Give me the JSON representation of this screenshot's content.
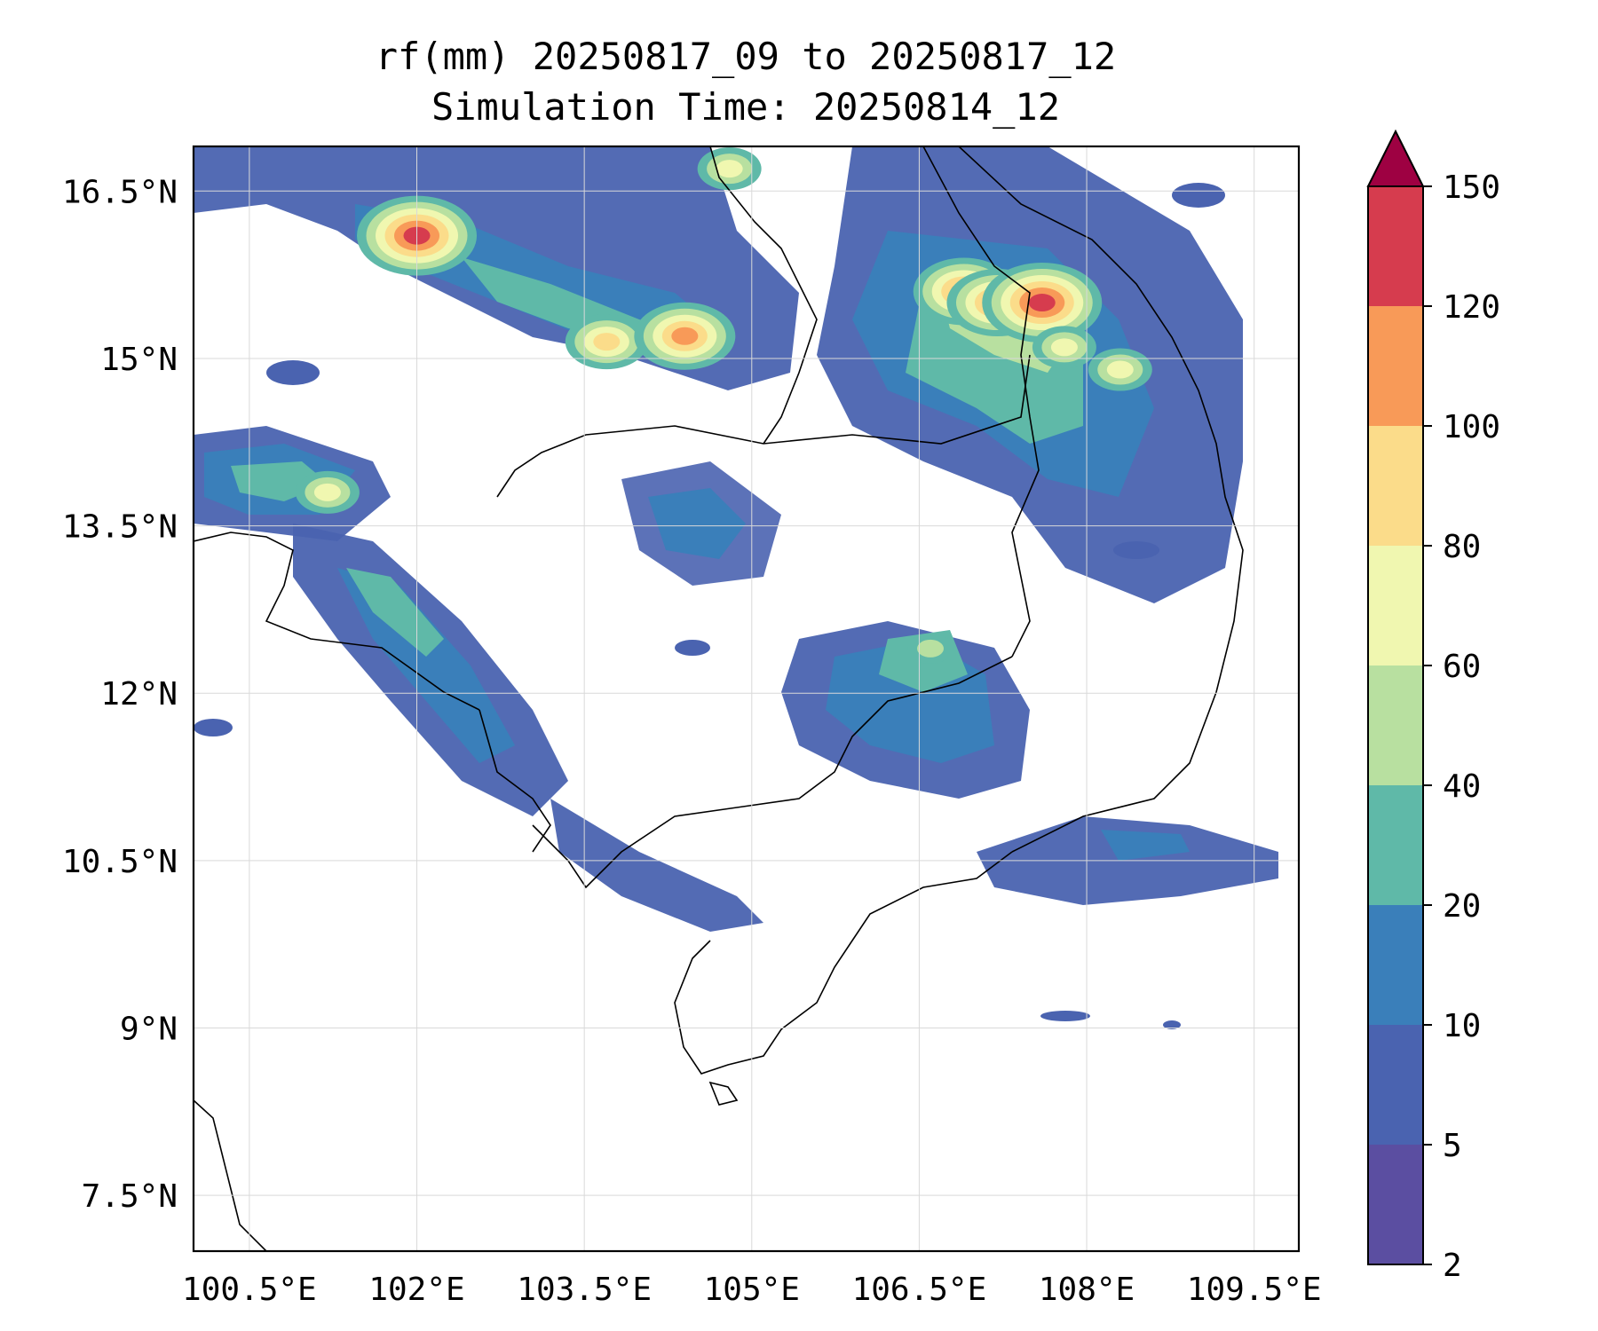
{
  "title": {
    "line1": "rf(mm) 20250817_09 to 20250817_12",
    "line2": "Simulation Time: 20250814_12"
  },
  "map": {
    "lon_range": [
      100.0,
      109.9
    ],
    "lat_range": [
      7.0,
      16.9
    ],
    "lon_ticks": [
      {
        "value": 100.5,
        "label": "100.5°E"
      },
      {
        "value": 102.0,
        "label": "102°E"
      },
      {
        "value": 103.5,
        "label": "103.5°E"
      },
      {
        "value": 105.0,
        "label": "105°E"
      },
      {
        "value": 106.5,
        "label": "106.5°E"
      },
      {
        "value": 108.0,
        "label": "108°E"
      },
      {
        "value": 109.5,
        "label": "109.5°E"
      }
    ],
    "lat_ticks": [
      {
        "value": 16.5,
        "label": "16.5°N"
      },
      {
        "value": 15.0,
        "label": "15°N"
      },
      {
        "value": 13.5,
        "label": "13.5°N"
      },
      {
        "value": 12.0,
        "label": "12°N"
      },
      {
        "value": 10.5,
        "label": "10.5°N"
      },
      {
        "value": 9.0,
        "label": "9°N"
      },
      {
        "value": 7.5,
        "label": "7.5°N"
      }
    ],
    "gridlines": true
  },
  "colorbar": {
    "levels": [
      {
        "value": 2,
        "label": "2"
      },
      {
        "value": 5,
        "label": "5"
      },
      {
        "value": 10,
        "label": "10"
      },
      {
        "value": 20,
        "label": "20"
      },
      {
        "value": 40,
        "label": "40"
      },
      {
        "value": 60,
        "label": "60"
      },
      {
        "value": 80,
        "label": "80"
      },
      {
        "value": 100,
        "label": "100"
      },
      {
        "value": 120,
        "label": "120"
      },
      {
        "value": 150,
        "label": "150"
      }
    ],
    "colors": [
      "#5b4ea1",
      "#4a63b0",
      "#3a7fba",
      "#5fb9a8",
      "#b8e0a0",
      "#f0f7b0",
      "#fbdc8a",
      "#f89a58",
      "#d63c4e"
    ],
    "extend_color": "#9e0142"
  },
  "rain_cells": [
    {
      "lon": 102.0,
      "lat": 16.1,
      "value": 130
    },
    {
      "lon": 103.7,
      "lat": 15.15,
      "value": 80
    },
    {
      "lon": 104.4,
      "lat": 15.2,
      "value": 100
    },
    {
      "lon": 101.2,
      "lat": 13.8,
      "value": 60
    },
    {
      "lon": 106.9,
      "lat": 15.6,
      "value": 100
    },
    {
      "lon": 107.2,
      "lat": 15.5,
      "value": 100
    },
    {
      "lon": 107.6,
      "lat": 15.5,
      "value": 120
    },
    {
      "lon": 107.8,
      "lat": 15.1,
      "value": 60
    },
    {
      "lon": 108.3,
      "lat": 14.9,
      "value": 60
    },
    {
      "lon": 104.8,
      "lat": 16.7,
      "value": 60
    },
    {
      "lon": 106.6,
      "lat": 12.4,
      "value": 40
    }
  ]
}
